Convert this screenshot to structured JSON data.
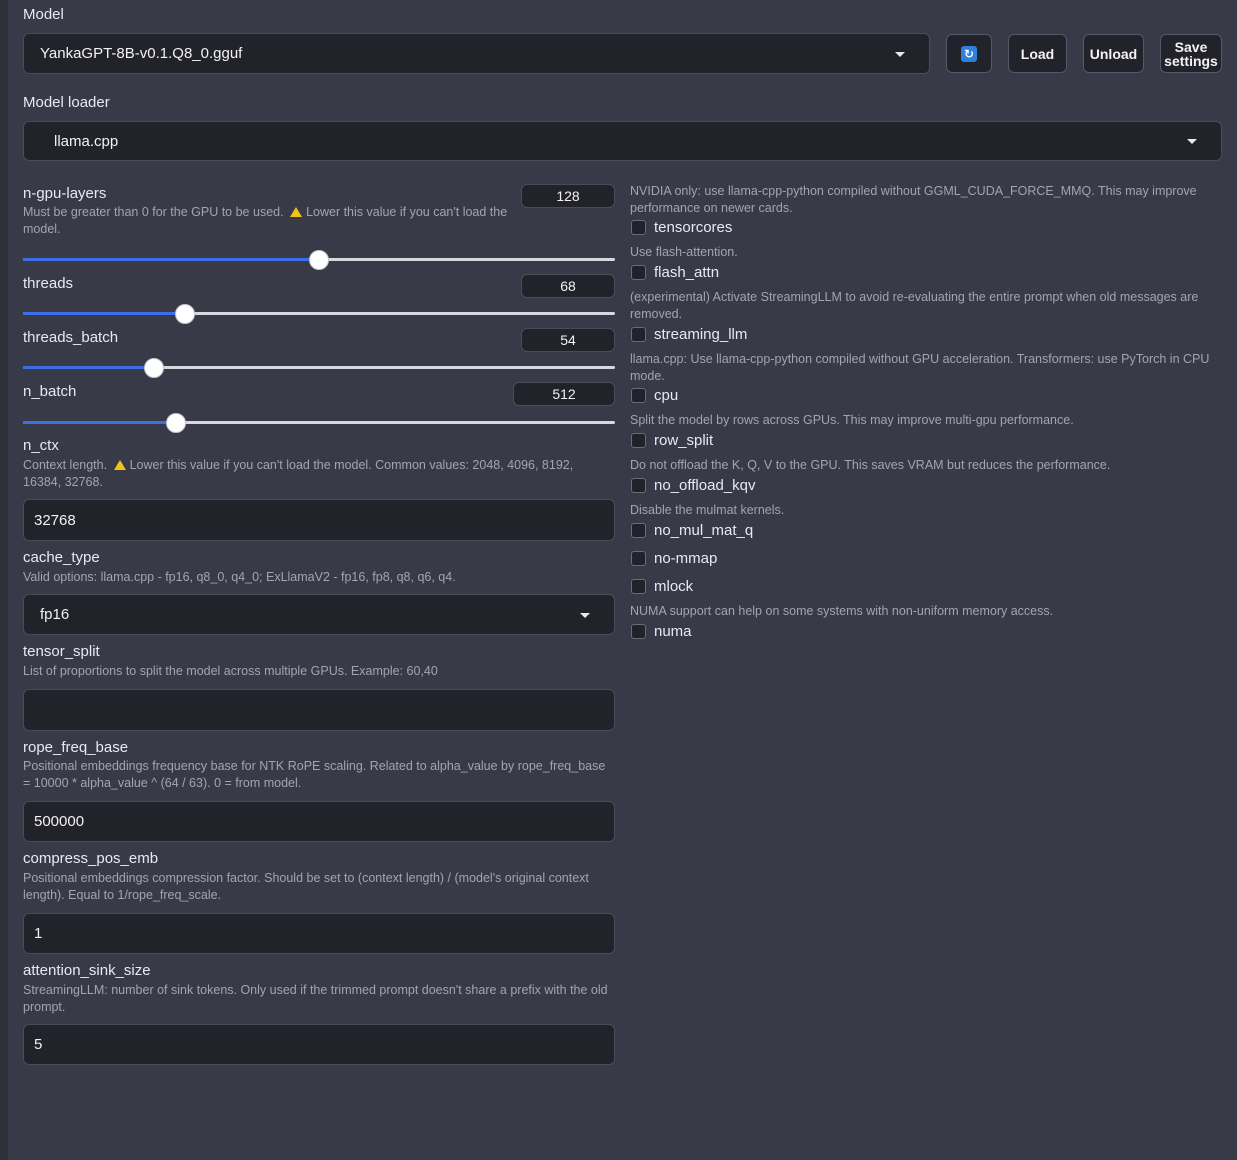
{
  "model": {
    "label": "Model",
    "selected": "YankaGPT-8B-v0.1.Q8_0.gguf",
    "refresh_icon": "refresh-icon",
    "load_label": "Load",
    "unload_label": "Unload",
    "save_label": "Save settings"
  },
  "loader": {
    "label": "Model loader",
    "selected": "llama.cpp"
  },
  "sliders": {
    "n_gpu_layers": {
      "label": "n-gpu-layers",
      "value": "128",
      "info": "Must be greater than 0 for the GPU to be used.",
      "warn": "Lower this value if you can't load the model.",
      "fraction": 0.5
    },
    "threads": {
      "label": "threads",
      "value": "68",
      "fraction": 0.274
    },
    "threads_batch": {
      "label": "threads_batch",
      "value": "54",
      "fraction": 0.221
    },
    "n_batch": {
      "label": "n_batch",
      "value": "512",
      "fraction": 0.258
    }
  },
  "n_ctx": {
    "label": "n_ctx",
    "info_prefix": "Context length.",
    "info_warn": "Lower this value if you can't load the model. Common values: 2048, 4096, 8192, 16384, 32768.",
    "value": "32768"
  },
  "cache_type": {
    "label": "cache_type",
    "info": "Valid options: llama.cpp - fp16, q8_0, q4_0; ExLlamaV2 - fp16, fp8, q8, q6, q4.",
    "selected": "fp16"
  },
  "tensor_split": {
    "label": "tensor_split",
    "info": "List of proportions to split the model across multiple GPUs. Example: 60,40",
    "value": ""
  },
  "rope_freq_base": {
    "label": "rope_freq_base",
    "info": "Positional embeddings frequency base for NTK RoPE scaling. Related to alpha_value by rope_freq_base = 10000 * alpha_value ^ (64 / 63). 0 = from model.",
    "value": "500000"
  },
  "compress_pos_emb": {
    "label": "compress_pos_emb",
    "info": "Positional embeddings compression factor. Should be set to (context length) / (model's original context length). Equal to 1/rope_freq_scale.",
    "value": "1"
  },
  "attention_sink_size": {
    "label": "attention_sink_size",
    "info": "StreamingLLM: number of sink tokens. Only used if the trimmed prompt doesn't share a prefix with the old prompt.",
    "value": "5"
  },
  "checkboxes": {
    "tensorcores": {
      "info": "NVIDIA only: use llama-cpp-python compiled without GGML_CUDA_FORCE_MMQ. This may improve performance on newer cards.",
      "label": "tensorcores"
    },
    "flash_attn": {
      "info": "Use flash-attention.",
      "label": "flash_attn"
    },
    "streaming_llm": {
      "info": "(experimental) Activate StreamingLLM to avoid re-evaluating the entire prompt when old messages are removed.",
      "label": "streaming_llm"
    },
    "cpu": {
      "info": "llama.cpp: Use llama-cpp-python compiled without GPU acceleration. Transformers: use PyTorch in CPU mode.",
      "label": "cpu"
    },
    "row_split": {
      "info": "Split the model by rows across GPUs. This may improve multi-gpu performance.",
      "label": "row_split"
    },
    "no_offload_kqv": {
      "info": "Do not offload the K, Q, V to the GPU. This saves VRAM but reduces the performance.",
      "label": "no_offload_kqv"
    },
    "no_mul_mat_q": {
      "info": "Disable the mulmat kernels.",
      "label": "no_mul_mat_q"
    },
    "no_mmap": {
      "label": "no-mmap"
    },
    "mlock": {
      "label": "mlock"
    },
    "numa": {
      "info": "NUMA support can help on some systems with non-uniform memory access.",
      "label": "numa"
    }
  },
  "colors": {
    "background": "#383a47",
    "input": "#22232a",
    "accent": "#3b6ee8",
    "warning": "#f0c419"
  }
}
